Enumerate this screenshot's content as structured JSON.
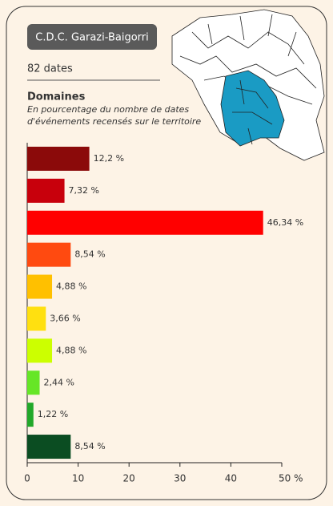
{
  "chart_data": {
    "type": "hbar",
    "title": "C.D.C. Garazi-Baigorri",
    "subtitle": "82 dates",
    "heading": "Domaines",
    "description": [
      "En pourcentage du nombre de dates",
      "d'événements recensés sur le territoire"
    ],
    "values": [
      12.2,
      7.32,
      46.34,
      8.54,
      4.88,
      3.66,
      4.88,
      2.44,
      1.22,
      8.54
    ],
    "value_labels": [
      "12,2 %",
      "7,32 %",
      "46,34 %",
      "8,54 %",
      "4,88 %",
      "3,66 %",
      "4,88 %",
      "2,44 %",
      "1,22 %",
      "8,54 %"
    ],
    "colors": [
      "#8b0a0a",
      "#c8000c",
      "#ff0000",
      "#ff4a10",
      "#ffc000",
      "#ffe010",
      "#ccff00",
      "#66e626",
      "#22a82a",
      "#0b4d22"
    ],
    "xlim": [
      0,
      50
    ],
    "xticks": [
      0,
      10,
      20,
      30,
      40,
      {
        "value": 50,
        "label": "50 %"
      }
    ]
  }
}
